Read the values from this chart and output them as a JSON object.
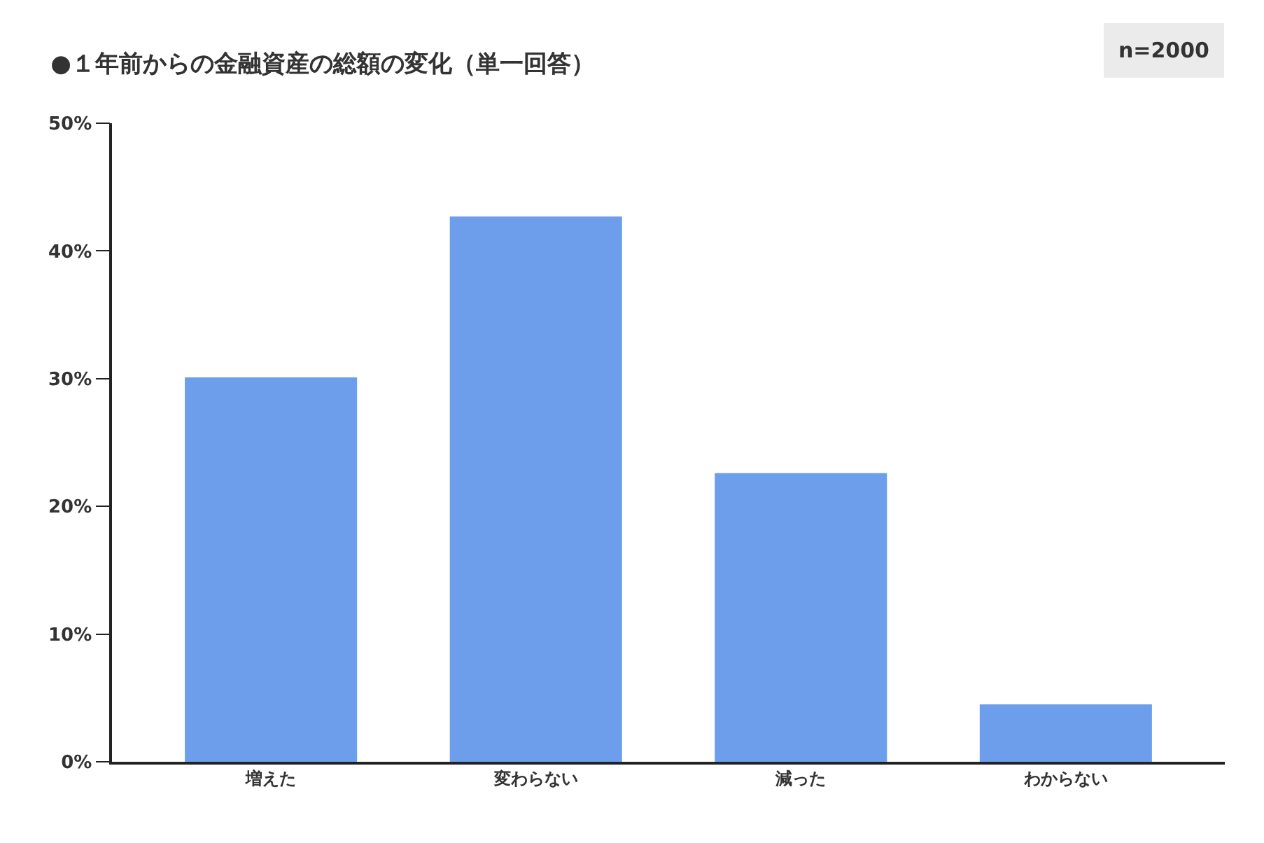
{
  "chart_data": {
    "type": "bar",
    "title": "●１年前からの金融資産の総額の変化（単一回答）",
    "annotations": [
      "n=2000"
    ],
    "categories": [
      "増えた",
      "変わらない",
      "減った",
      "わからない"
    ],
    "values": [
      30.1,
      42.7,
      22.6,
      4.5
    ],
    "color": "#6d9eeb",
    "ylim": [
      0,
      50
    ],
    "yticks": [
      {
        "value": 0,
        "label": "0%"
      },
      {
        "value": 10,
        "label": "10%"
      },
      {
        "value": 20,
        "label": "20%"
      },
      {
        "value": 30,
        "label": "30%"
      },
      {
        "value": 40,
        "label": "40%"
      },
      {
        "value": 50,
        "label": "50%"
      }
    ],
    "grid": false
  }
}
